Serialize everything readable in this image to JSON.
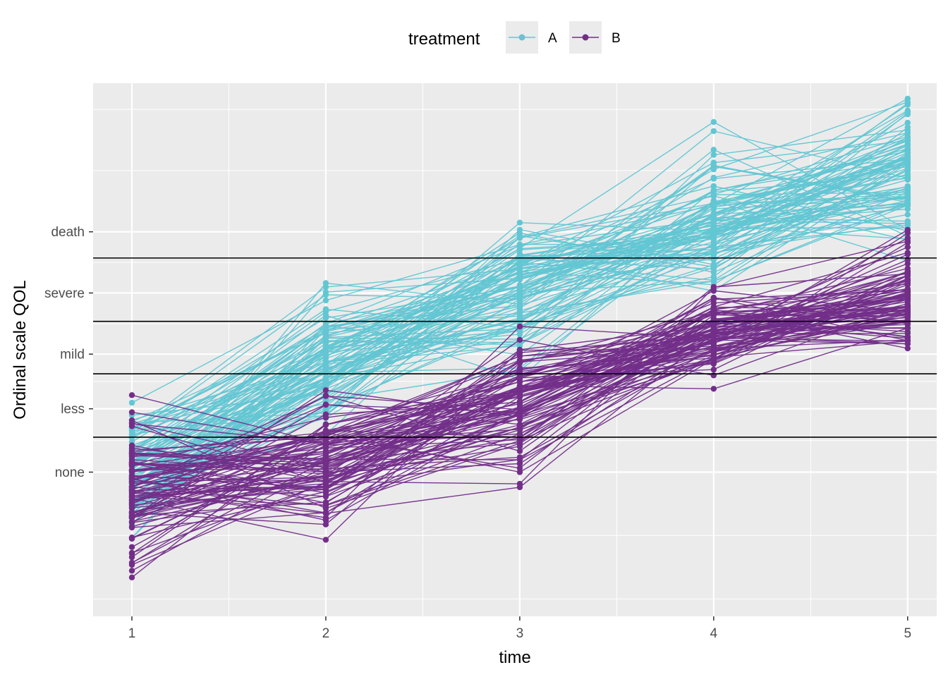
{
  "chart_data": {
    "type": "line",
    "xlabel": "time",
    "ylabel": "Ordinal scale QOL",
    "x_ticks": [
      "1",
      "2",
      "3",
      "4",
      "5"
    ],
    "xlim": [
      0.8,
      5.15
    ],
    "ylim": [
      -6.0,
      6.2
    ],
    "y_ticks": [
      {
        "label": "death",
        "value": 2.8
      },
      {
        "label": "severe",
        "value": 1.4
      },
      {
        "label": "mild",
        "value": 0.0
      },
      {
        "label": "less",
        "value": -1.25
      },
      {
        "label": "none",
        "value": -2.7
      }
    ],
    "cutpoints": [
      2.2,
      0.75,
      -0.45,
      -1.9
    ],
    "legend": {
      "title": "treatment",
      "position": "top",
      "entries": [
        {
          "label": "A",
          "color": "#62C6D3"
        },
        {
          "label": "B",
          "color": "#722E89"
        }
      ]
    },
    "grid": true,
    "panel_background": "#EBEBEB",
    "series": [
      {
        "treatment": "A",
        "color": "#62C6D3",
        "mean": [
          -2.7,
          -0.2,
          1.5,
          3.0,
          4.3
        ],
        "sd": [
          0.7,
          0.75,
          0.7,
          0.85,
          0.7
        ],
        "n_subjects": 100
      },
      {
        "treatment": "B",
        "color": "#722E89",
        "mean": [
          -3.2,
          -2.5,
          -1.2,
          0.4,
          1.2
        ],
        "sd": [
          0.75,
          0.6,
          0.65,
          0.45,
          0.65
        ],
        "n_subjects": 100
      }
    ]
  }
}
